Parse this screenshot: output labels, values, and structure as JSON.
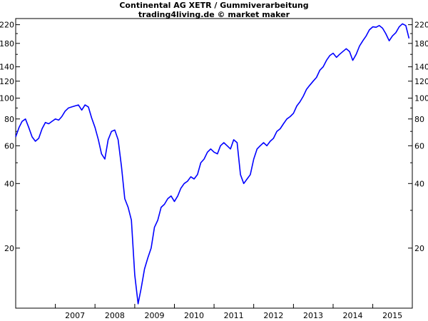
{
  "chart_data": {
    "type": "line",
    "title": "Continental AG XETR / Gummiverarbeitung",
    "subtitle": "trading4living.de © market maker",
    "xlabel": "",
    "ylabel": "",
    "y_scale": "log",
    "ylim": [
      10.5,
      235
    ],
    "xlim": [
      "2006-01-01",
      "2015-12-31"
    ],
    "grid": false,
    "y_ticks_labeled": [
      20,
      40,
      60,
      80,
      100,
      120,
      140,
      180,
      220
    ],
    "y_ticks_minor": [
      30,
      50,
      70,
      90,
      160,
      200
    ],
    "x_tick_labels": [
      "2007",
      "2008",
      "2009",
      "2010",
      "2011",
      "2012",
      "2013",
      "2014",
      "2015"
    ],
    "series": [
      {
        "color": "#0000ff",
        "x": [
          "2006-01-01",
          "2006-02-01",
          "2006-03-01",
          "2006-04-01",
          "2006-05-01",
          "2006-06-01",
          "2006-07-01",
          "2006-08-01",
          "2006-09-01",
          "2006-10-01",
          "2006-11-01",
          "2006-12-01",
          "2007-01-01",
          "2007-02-01",
          "2007-03-01",
          "2007-04-01",
          "2007-05-01",
          "2007-06-01",
          "2007-07-01",
          "2007-08-01",
          "2007-09-01",
          "2007-10-01",
          "2007-11-01",
          "2007-12-01",
          "2008-01-01",
          "2008-02-01",
          "2008-03-01",
          "2008-04-01",
          "2008-05-01",
          "2008-06-01",
          "2008-07-01",
          "2008-08-01",
          "2008-09-01",
          "2008-10-01",
          "2008-11-01",
          "2008-12-01",
          "2009-01-01",
          "2009-02-01",
          "2009-03-01",
          "2009-04-01",
          "2009-05-01",
          "2009-06-01",
          "2009-07-01",
          "2009-08-01",
          "2009-09-01",
          "2009-10-01",
          "2009-11-01",
          "2009-12-01",
          "2010-01-01",
          "2010-02-01",
          "2010-03-01",
          "2010-04-01",
          "2010-05-01",
          "2010-06-01",
          "2010-07-01",
          "2010-08-01",
          "2010-09-01",
          "2010-10-01",
          "2010-11-01",
          "2010-12-01",
          "2011-01-01",
          "2011-02-01",
          "2011-03-01",
          "2011-04-01",
          "2011-05-01",
          "2011-06-01",
          "2011-07-01",
          "2011-08-01",
          "2011-09-01",
          "2011-10-01",
          "2011-11-01",
          "2011-12-01",
          "2012-01-01",
          "2012-02-01",
          "2012-03-01",
          "2012-04-01",
          "2012-05-01",
          "2012-06-01",
          "2012-07-01",
          "2012-08-01",
          "2012-09-01",
          "2012-10-01",
          "2012-11-01",
          "2012-12-01",
          "2013-01-01",
          "2013-02-01",
          "2013-03-01",
          "2013-04-01",
          "2013-05-01",
          "2013-06-01",
          "2013-07-01",
          "2013-08-01",
          "2013-09-01",
          "2013-10-01",
          "2013-11-01",
          "2013-12-01",
          "2014-01-01",
          "2014-02-01",
          "2014-03-01",
          "2014-04-01",
          "2014-05-01",
          "2014-06-01",
          "2014-07-01",
          "2014-08-01",
          "2014-09-01",
          "2014-10-01",
          "2014-11-01",
          "2014-12-01",
          "2015-01-01",
          "2015-02-01",
          "2015-03-01",
          "2015-04-01",
          "2015-05-01",
          "2015-06-01",
          "2015-07-01",
          "2015-08-01",
          "2015-09-01",
          "2015-10-01",
          "2015-11-01",
          "2015-12-01"
        ],
        "y": [
          66,
          73,
          78,
          80,
          73,
          66,
          63,
          65,
          72,
          77,
          76,
          78,
          80,
          79,
          82,
          87,
          90,
          91,
          92,
          93,
          88,
          93,
          91,
          81,
          73,
          64,
          55,
          52,
          64,
          70,
          71,
          64,
          48,
          34,
          31,
          27,
          15,
          11,
          13,
          16,
          18,
          20,
          25,
          27,
          31,
          32,
          34,
          35,
          33,
          35,
          38,
          40,
          41,
          43,
          42,
          44,
          50,
          52,
          56,
          58,
          56,
          55,
          60,
          62,
          60,
          58,
          64,
          62,
          44,
          40,
          42,
          44,
          52,
          58,
          60,
          62,
          60,
          63,
          65,
          70,
          72,
          76,
          80,
          82,
          85,
          92,
          96,
          102,
          110,
          115,
          120,
          125,
          135,
          140,
          150,
          158,
          162,
          155,
          160,
          165,
          170,
          165,
          150,
          160,
          175,
          185,
          195,
          208,
          215,
          214,
          218,
          212,
          200,
          185,
          195,
          202,
          215,
          222,
          218,
          190
        ]
      }
    ]
  }
}
